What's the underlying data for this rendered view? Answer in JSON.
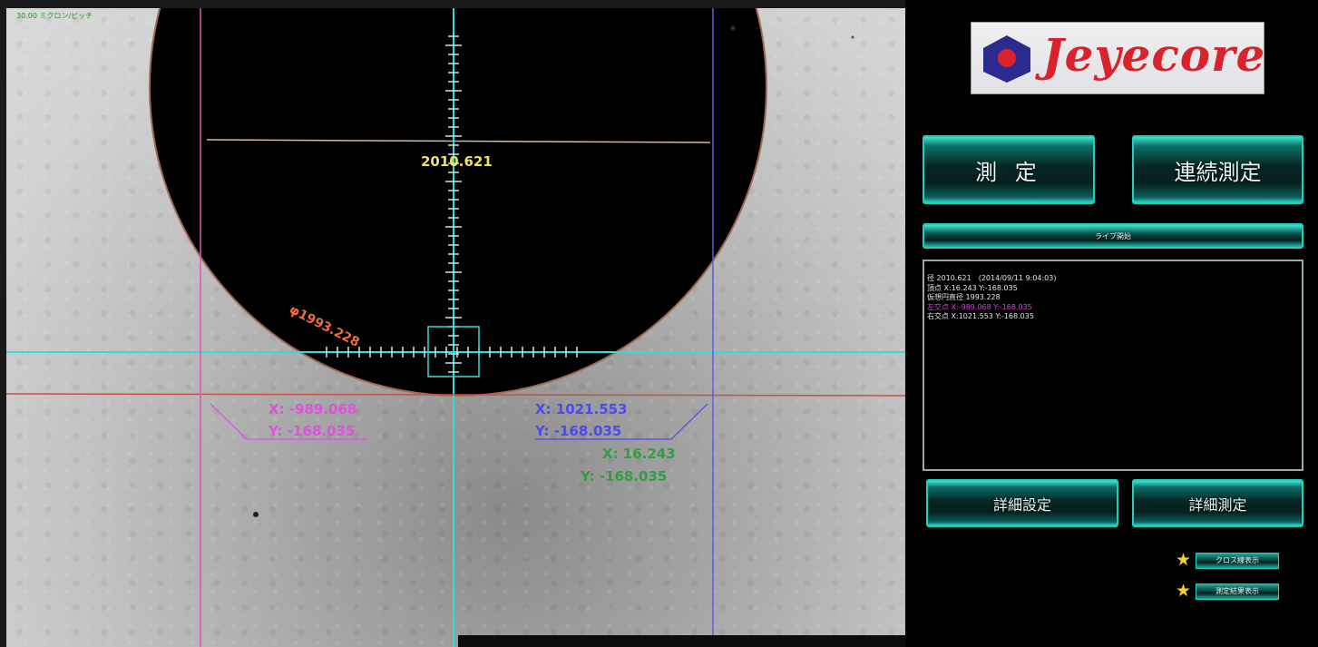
{
  "viewport": {
    "zoom_label": "30.00 ミクロン/ピッチ",
    "measurements": {
      "top_value": "2010.621",
      "diameter": "φ1993.228",
      "left_point": {
        "x": "X: -989.068",
        "y": "Y: -168.035"
      },
      "right_point": {
        "x": "X: 1021.553",
        "y": "Y: -168.035"
      },
      "center_point": {
        "x": "X: 16.243",
        "y": "Y: -168.035"
      }
    },
    "colors": {
      "crosshair": "#37d9d9",
      "left_line": "#e050c0",
      "right_line": "#5a5ae6",
      "edge_line": "#c85040",
      "chord_line": "#d8b8a0",
      "top_value": "#f0e060",
      "diameter": "#f06a40",
      "left_text": "#e050e0",
      "right_text": "#4a4af0",
      "center_text": "#2f9f3f"
    }
  },
  "panel": {
    "logo_text": "Jeyecore",
    "buttons": {
      "measure": "測 定",
      "continuous_measure": "連続測定",
      "live_start": "ライブ開始",
      "detail_settings": "詳細設定",
      "detail_measure": "詳細測定"
    },
    "results": [
      {
        "text": "径 2010.621　(2014/09/11 9:04:03)",
        "color": "#e6e6e6"
      },
      {
        "text": "頂点 X:16.243  Y:-168.035",
        "color": "#e6e6e6"
      },
      {
        "text": "仮想円直径 1993.228",
        "color": "#e6e6e6"
      },
      {
        "text": "左交点 X:-989.068  Y:-168.035",
        "color": "#e040e0"
      },
      {
        "text": "右交点 X:1021.553  Y:-168.035",
        "color": "#e6e6e6"
      }
    ],
    "options": [
      {
        "label": "クロス線表示",
        "icon": "star-icon"
      },
      {
        "label": "測定結果表示",
        "icon": "star-icon"
      }
    ]
  }
}
